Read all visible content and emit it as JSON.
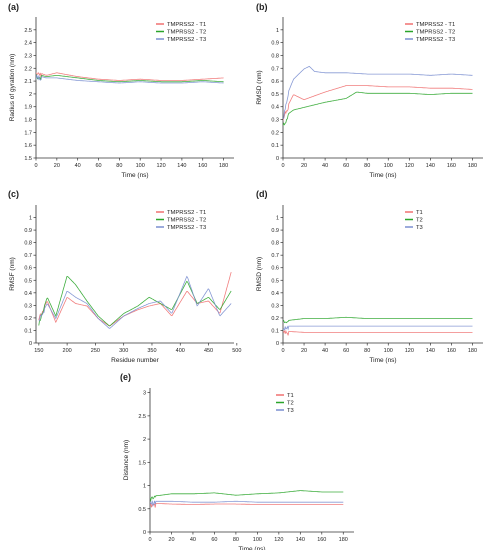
{
  "chart_data": [
    {
      "panel": "(a)",
      "type": "line",
      "xlabel": "Time (ns)",
      "ylabel": "Radius of gyration (nm)",
      "xlim": [
        0,
        190
      ],
      "ylim": [
        1.5,
        2.6
      ],
      "xticks": [
        0,
        20,
        40,
        60,
        80,
        100,
        120,
        140,
        160,
        180
      ],
      "yticks": [
        1.5,
        1.6,
        1.7,
        1.8,
        1.9,
        2.0,
        2.1,
        2.2,
        2.3,
        2.4,
        2.5
      ],
      "grid": false,
      "legend": "top-right",
      "series": [
        {
          "name": "TMPRSS2 - T1",
          "color": "#f07070",
          "x": [
            0,
            10,
            20,
            40,
            60,
            80,
            100,
            120,
            140,
            160,
            180
          ],
          "y": [
            2.16,
            2.13,
            2.15,
            2.12,
            2.1,
            2.09,
            2.1,
            2.09,
            2.09,
            2.1,
            2.11
          ]
        },
        {
          "name": "TMPRSS2 - T2",
          "color": "#2aa52a",
          "x": [
            0,
            10,
            20,
            40,
            60,
            80,
            100,
            120,
            140,
            160,
            180
          ],
          "y": [
            2.14,
            2.12,
            2.13,
            2.11,
            2.09,
            2.08,
            2.09,
            2.08,
            2.08,
            2.09,
            2.08
          ]
        },
        {
          "name": "TMPRSS2 - T3",
          "color": "#7b8fd0",
          "x": [
            0,
            10,
            20,
            40,
            60,
            80,
            100,
            120,
            140,
            160,
            180
          ],
          "y": [
            2.13,
            2.11,
            2.11,
            2.09,
            2.08,
            2.07,
            2.08,
            2.07,
            2.07,
            2.08,
            2.07
          ]
        }
      ]
    },
    {
      "panel": "(b)",
      "type": "line",
      "xlabel": "Time (ns)",
      "ylabel": "RMSD (nm)",
      "xlim": [
        0,
        190
      ],
      "ylim": [
        0,
        1.1
      ],
      "xticks": [
        0,
        20,
        40,
        60,
        80,
        100,
        120,
        140,
        160,
        180
      ],
      "yticks": [
        0,
        0.1,
        0.2,
        0.3,
        0.4,
        0.5,
        0.6,
        0.7,
        0.8,
        0.9,
        1.0
      ],
      "grid": false,
      "legend": "top-right",
      "series": [
        {
          "name": "TMPRSS2 - T1",
          "color": "#f07070",
          "x": [
            0,
            5,
            10,
            20,
            30,
            40,
            60,
            80,
            100,
            120,
            140,
            160,
            180
          ],
          "y": [
            0.3,
            0.4,
            0.48,
            0.44,
            0.47,
            0.5,
            0.55,
            0.55,
            0.54,
            0.54,
            0.53,
            0.53,
            0.52
          ]
        },
        {
          "name": "TMPRSS2 - T2",
          "color": "#2aa52a",
          "x": [
            0,
            5,
            10,
            20,
            30,
            40,
            60,
            70,
            80,
            100,
            120,
            140,
            160,
            180
          ],
          "y": [
            0.25,
            0.33,
            0.36,
            0.38,
            0.4,
            0.42,
            0.45,
            0.5,
            0.49,
            0.49,
            0.49,
            0.48,
            0.49,
            0.49
          ]
        },
        {
          "name": "TMPRSS2 - T3",
          "color": "#7b8fd0",
          "x": [
            0,
            5,
            10,
            20,
            25,
            30,
            40,
            60,
            80,
            100,
            120,
            140,
            160,
            180
          ],
          "y": [
            0.3,
            0.5,
            0.6,
            0.68,
            0.7,
            0.66,
            0.65,
            0.65,
            0.64,
            0.64,
            0.64,
            0.63,
            0.64,
            0.63
          ]
        }
      ]
    },
    {
      "panel": "(c)",
      "type": "line",
      "xlabel": "Residue number",
      "ylabel": "RMSF (nm)",
      "xlim": [
        145,
        495
      ],
      "ylim": [
        0,
        1.1
      ],
      "xticks": [
        150,
        200,
        250,
        300,
        350,
        400,
        450,
        500
      ],
      "yticks": [
        0,
        0.1,
        0.2,
        0.3,
        0.4,
        0.5,
        0.6,
        0.7,
        0.8,
        0.9,
        1.0
      ],
      "grid": false,
      "legend": "top-right",
      "series": [
        {
          "name": "TMPRSS2 - T1",
          "color": "#f07070",
          "x": [
            150,
            165,
            180,
            200,
            215,
            235,
            255,
            275,
            300,
            325,
            345,
            365,
            385,
            412,
            430,
            450,
            470,
            490
          ],
          "y": [
            0.2,
            0.32,
            0.15,
            0.35,
            0.3,
            0.28,
            0.18,
            0.12,
            0.2,
            0.25,
            0.28,
            0.3,
            0.2,
            0.4,
            0.3,
            0.32,
            0.22,
            0.55
          ]
        },
        {
          "name": "TMPRSS2 - T2",
          "color": "#2aa52a",
          "x": [
            150,
            165,
            180,
            200,
            215,
            235,
            255,
            275,
            300,
            325,
            345,
            365,
            385,
            412,
            430,
            450,
            470,
            490
          ],
          "y": [
            0.15,
            0.35,
            0.2,
            0.52,
            0.45,
            0.32,
            0.2,
            0.12,
            0.22,
            0.28,
            0.35,
            0.3,
            0.25,
            0.48,
            0.3,
            0.35,
            0.25,
            0.4
          ]
        },
        {
          "name": "TMPRSS2 - T3",
          "color": "#7b8fd0",
          "x": [
            150,
            165,
            180,
            200,
            215,
            235,
            255,
            275,
            300,
            325,
            345,
            365,
            385,
            412,
            430,
            450,
            470,
            490
          ],
          "y": [
            0.18,
            0.3,
            0.18,
            0.4,
            0.35,
            0.3,
            0.18,
            0.1,
            0.2,
            0.26,
            0.3,
            0.32,
            0.22,
            0.52,
            0.28,
            0.42,
            0.2,
            0.3
          ]
        }
      ]
    },
    {
      "panel": "(d)",
      "type": "line",
      "xlabel": "Time (ns)",
      "ylabel": "RMSD (nm)",
      "xlim": [
        0,
        190
      ],
      "ylim": [
        0,
        1.1
      ],
      "xticks": [
        0,
        20,
        40,
        60,
        80,
        100,
        120,
        140,
        160,
        180
      ],
      "yticks": [
        0,
        0.1,
        0.2,
        0.3,
        0.4,
        0.5,
        0.6,
        0.7,
        0.8,
        0.9,
        1.0
      ],
      "grid": false,
      "legend": "top-right",
      "series": [
        {
          "name": "T1",
          "color": "#f07070",
          "x": [
            0,
            20,
            40,
            60,
            80,
            100,
            120,
            140,
            160,
            180
          ],
          "y": [
            0.08,
            0.07,
            0.07,
            0.07,
            0.07,
            0.07,
            0.07,
            0.07,
            0.07,
            0.07
          ]
        },
        {
          "name": "T2",
          "color": "#2aa52a",
          "x": [
            0,
            20,
            40,
            60,
            80,
            100,
            120,
            140,
            160,
            180
          ],
          "y": [
            0.16,
            0.18,
            0.18,
            0.19,
            0.18,
            0.18,
            0.18,
            0.18,
            0.18,
            0.18
          ]
        },
        {
          "name": "T3",
          "color": "#7b8fd0",
          "x": [
            0,
            20,
            40,
            60,
            80,
            100,
            120,
            140,
            160,
            180
          ],
          "y": [
            0.12,
            0.12,
            0.12,
            0.12,
            0.12,
            0.12,
            0.12,
            0.12,
            0.12,
            0.12
          ]
        }
      ]
    },
    {
      "panel": "(e)",
      "type": "line",
      "xlabel": "Time (ns)",
      "ylabel": "Distance (nm)",
      "xlim": [
        0,
        190
      ],
      "ylim": [
        0,
        3.1
      ],
      "xticks": [
        0,
        20,
        40,
        60,
        80,
        100,
        120,
        140,
        160,
        180
      ],
      "yticks": [
        0,
        0.5,
        1.0,
        1.5,
        2.0,
        2.5,
        3.0
      ],
      "grid": false,
      "legend": "top-right",
      "series": [
        {
          "name": "T1",
          "color": "#f07070",
          "x": [
            0,
            20,
            40,
            60,
            80,
            100,
            120,
            140,
            160,
            180
          ],
          "y": [
            0.58,
            0.56,
            0.55,
            0.56,
            0.56,
            0.55,
            0.55,
            0.55,
            0.55,
            0.55
          ]
        },
        {
          "name": "T2",
          "color": "#2aa52a",
          "x": [
            0,
            20,
            40,
            60,
            80,
            100,
            120,
            140,
            160,
            180
          ],
          "y": [
            0.72,
            0.78,
            0.78,
            0.8,
            0.75,
            0.78,
            0.8,
            0.85,
            0.82,
            0.82
          ]
        },
        {
          "name": "T3",
          "color": "#7b8fd0",
          "x": [
            0,
            20,
            40,
            60,
            80,
            100,
            120,
            140,
            160,
            180
          ],
          "y": [
            0.62,
            0.62,
            0.6,
            0.6,
            0.62,
            0.6,
            0.6,
            0.6,
            0.6,
            0.6
          ]
        }
      ]
    }
  ]
}
